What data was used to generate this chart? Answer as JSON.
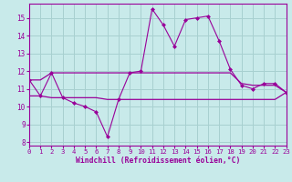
{
  "x": [
    0,
    1,
    2,
    3,
    4,
    5,
    6,
    7,
    8,
    9,
    10,
    11,
    12,
    13,
    14,
    15,
    16,
    17,
    18,
    19,
    20,
    21,
    22,
    23
  ],
  "line_main": [
    11.5,
    10.6,
    11.9,
    10.5,
    10.2,
    10.0,
    9.7,
    8.3,
    10.4,
    11.9,
    12.0,
    15.5,
    14.6,
    13.4,
    14.9,
    15.0,
    15.1,
    13.7,
    12.1,
    11.2,
    11.0,
    11.3,
    11.3,
    10.8
  ],
  "line_flat_low": [
    10.6,
    10.6,
    10.5,
    10.5,
    10.5,
    10.5,
    10.5,
    10.4,
    10.4,
    10.4,
    10.4,
    10.4,
    10.4,
    10.4,
    10.4,
    10.4,
    10.4,
    10.4,
    10.4,
    10.4,
    10.4,
    10.4,
    10.4,
    10.8
  ],
  "line_flat_high": [
    11.5,
    11.5,
    11.9,
    11.9,
    11.9,
    11.9,
    11.9,
    11.9,
    11.9,
    11.9,
    11.9,
    11.9,
    11.9,
    11.9,
    11.9,
    11.9,
    11.9,
    11.9,
    11.9,
    11.3,
    11.2,
    11.2,
    11.2,
    10.8
  ],
  "color": "#990099",
  "bg_color": "#c8eaea",
  "grid_color": "#a8d0d0",
  "xlabel": "Windchill (Refroidissement éolien,°C)",
  "ylim": [
    7.8,
    15.8
  ],
  "xlim": [
    0,
    23
  ],
  "yticks": [
    8,
    9,
    10,
    11,
    12,
    13,
    14,
    15
  ],
  "xticks": [
    0,
    1,
    2,
    3,
    4,
    5,
    6,
    7,
    8,
    9,
    10,
    11,
    12,
    13,
    14,
    15,
    16,
    17,
    18,
    19,
    20,
    21,
    22,
    23
  ]
}
